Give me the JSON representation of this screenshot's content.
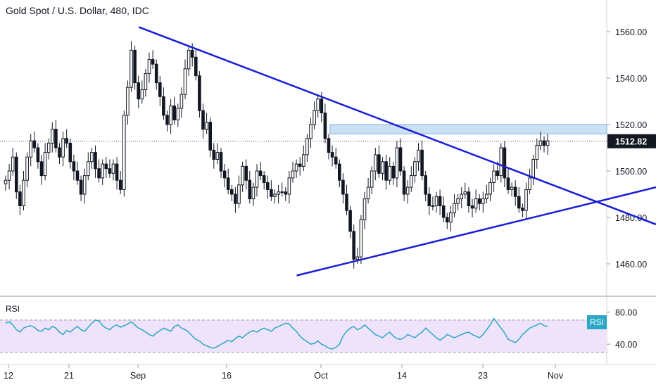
{
  "chart_data": {
    "type": "candlestick",
    "title": "Gold Spot / U.S. Dollar, 480, IDC",
    "price_axis": {
      "ylim": [
        1450,
        1570
      ],
      "ticks": [
        "1560.00",
        "1540.00",
        "1520.00",
        "1500.00",
        "1480.00",
        "1460.00"
      ]
    },
    "last_price_label": "1512.82",
    "last_price": 1512.82,
    "x_tick_labels": [
      "12",
      "21",
      "Sep",
      "16",
      "Oct",
      "14",
      "23",
      "Nov"
    ],
    "rsi": {
      "label": "RSI",
      "badge": "RSI",
      "ylim": [
        20,
        90
      ],
      "ticks": [
        "80.00",
        "40.00"
      ],
      "band": [
        30,
        70
      ],
      "values": [
        66,
        68,
        64,
        58,
        55,
        60,
        62,
        63,
        61,
        57,
        56,
        60,
        58,
        62,
        60,
        55,
        52,
        57,
        55,
        59,
        62,
        58,
        56,
        61,
        66,
        70,
        69,
        63,
        60,
        58,
        62,
        64,
        61,
        63,
        65,
        68,
        64,
        60,
        58,
        55,
        52,
        50,
        54,
        57,
        60,
        58,
        56,
        62,
        64,
        60,
        58,
        55,
        50,
        46,
        44,
        40,
        38,
        36,
        35,
        37,
        40,
        42,
        45,
        43,
        47,
        50,
        48,
        52,
        55,
        57,
        55,
        58,
        60,
        58,
        56,
        60,
        62,
        64,
        66,
        65,
        60,
        56,
        50,
        46,
        43,
        40,
        41,
        44,
        40,
        38,
        35,
        34,
        36,
        40,
        50,
        56,
        60,
        62,
        58,
        60,
        64,
        60,
        56,
        52,
        50,
        48,
        52,
        55,
        50,
        47,
        46,
        48,
        52,
        50,
        48,
        52,
        55,
        60,
        56,
        52,
        48,
        45,
        48,
        52,
        50,
        48,
        50,
        52,
        54,
        55,
        52,
        50,
        48,
        52,
        58,
        64,
        72,
        66,
        60,
        54,
        46,
        44,
        42,
        46,
        52,
        56,
        60,
        62,
        64,
        66,
        63,
        62
      ]
    },
    "price_series": {
      "closes": [
        1496,
        1500,
        1506,
        1491,
        1485,
        1496,
        1506,
        1513,
        1510,
        1504,
        1498,
        1508,
        1512,
        1518,
        1510,
        1506,
        1514,
        1512,
        1504,
        1500,
        1496,
        1490,
        1498,
        1504,
        1508,
        1501,
        1497,
        1503,
        1501,
        1499,
        1503,
        1496,
        1492,
        1524,
        1536,
        1552,
        1538,
        1531,
        1535,
        1542,
        1548,
        1546,
        1538,
        1532,
        1524,
        1520,
        1528,
        1522,
        1527,
        1533,
        1544,
        1552,
        1549,
        1541,
        1526,
        1518,
        1521,
        1509,
        1505,
        1508,
        1500,
        1497,
        1492,
        1490,
        1486,
        1494,
        1502,
        1496,
        1488,
        1493,
        1500,
        1498,
        1495,
        1492,
        1489,
        1490,
        1491,
        1491,
        1490,
        1497,
        1500,
        1503,
        1502,
        1507,
        1514,
        1520,
        1526,
        1531,
        1525,
        1514,
        1508,
        1506,
        1503,
        1496,
        1490,
        1483,
        1474,
        1462,
        1463,
        1479,
        1488,
        1493,
        1500,
        1507,
        1499,
        1504,
        1496,
        1502,
        1497,
        1510,
        1500,
        1490,
        1493,
        1498,
        1504,
        1509,
        1498,
        1490,
        1485,
        1485,
        1489,
        1485,
        1480,
        1478,
        1482,
        1486,
        1488,
        1490,
        1491,
        1485,
        1484,
        1488,
        1486,
        1488,
        1490,
        1495,
        1500,
        1498,
        1510,
        1497,
        1492,
        1493,
        1489,
        1484,
        1483,
        1492,
        1497,
        1505,
        1511,
        1513,
        1511,
        1513
      ]
    },
    "trendlines": [
      {
        "name": "resistance",
        "from": [
          41,
          1562
        ],
        "to": [
          176,
          1477
        ]
      },
      {
        "name": "support",
        "from": [
          85,
          1455
        ],
        "to": [
          176,
          1493
        ]
      }
    ],
    "resistance_zone": [
      1516,
      1520
    ],
    "rsi_reference_level": 70,
    "colors": {
      "up": "#ffffff",
      "down": "#131722",
      "trendline": "#1a1ed6",
      "zone": "#b8d7f0",
      "rsi_line": "#2ba7c7",
      "rsi_band": "#efe3fb"
    },
    "grid": false,
    "legend": "none"
  }
}
